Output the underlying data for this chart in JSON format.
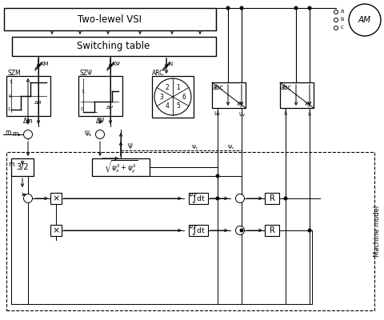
{
  "bg_color": "#ffffff",
  "vsi_label": "Two-lewel VSI",
  "sw_label": "Switching table",
  "machine_label": "Machine model",
  "am_label": "AM",
  "szm_label": "SZM",
  "szpsi_label": "SZΨ",
  "arc_label": "ARC",
  "sector_nums": [
    "1",
    "6",
    "5",
    "4",
    "3",
    "2"
  ],
  "sector_angles": [
    60,
    0,
    -60,
    -120,
    180,
    120
  ]
}
